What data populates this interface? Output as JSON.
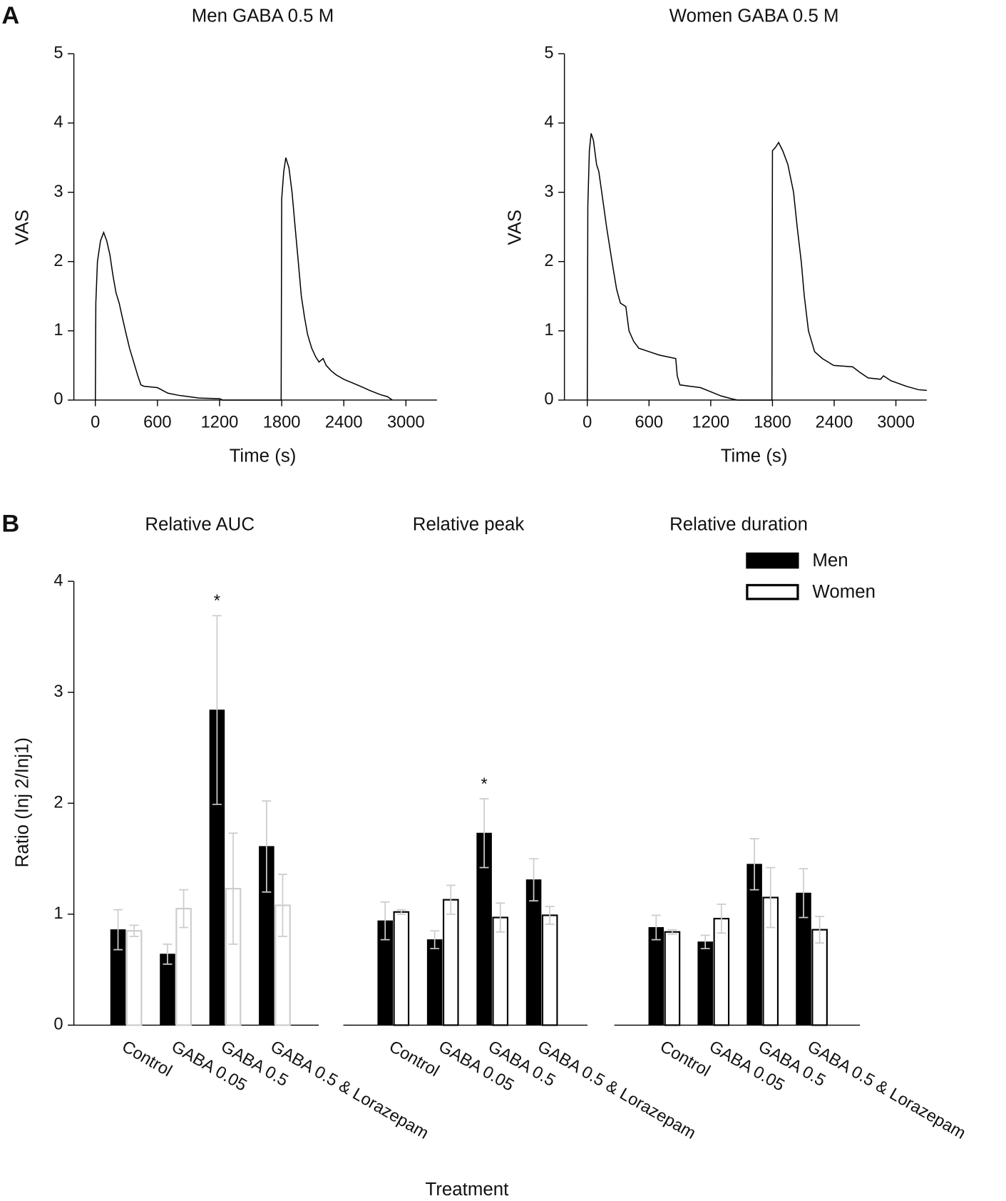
{
  "chart_data": [
    {
      "type": "line",
      "panel": "A",
      "title": "Men GABA 0.5 M",
      "xlabel": "Time (s)",
      "ylabel": "VAS",
      "x": [
        0,
        5,
        20,
        50,
        80,
        110,
        140,
        170,
        200,
        230,
        260,
        290,
        330,
        370,
        410,
        440,
        470,
        600,
        700,
        800,
        900,
        1000,
        1200,
        1230,
        1795,
        1800,
        1820,
        1840,
        1870,
        1900,
        1930,
        1960,
        1990,
        2020,
        2050,
        2090,
        2130,
        2160,
        2200,
        2230,
        2280,
        2330,
        2400,
        2480,
        2560,
        2650,
        2750,
        2820,
        2870
      ],
      "values": [
        0,
        1.4,
        2.0,
        2.3,
        2.42,
        2.3,
        2.1,
        1.8,
        1.55,
        1.4,
        1.2,
        1.0,
        0.75,
        0.55,
        0.35,
        0.22,
        0.2,
        0.18,
        0.1,
        0.07,
        0.05,
        0.03,
        0.02,
        0,
        0,
        2.9,
        3.3,
        3.5,
        3.35,
        3.0,
        2.5,
        2.0,
        1.5,
        1.2,
        0.95,
        0.75,
        0.62,
        0.55,
        0.6,
        0.5,
        0.42,
        0.36,
        0.3,
        0.25,
        0.2,
        0.14,
        0.08,
        0.05,
        0
      ],
      "color": "#000000",
      "xlim": [
        -200,
        3300
      ],
      "ylim": [
        0,
        5
      ],
      "xticks": [
        0,
        600,
        1200,
        1800,
        2400,
        3000
      ],
      "yticks": [
        0,
        1,
        2,
        3,
        4,
        5
      ]
    },
    {
      "type": "line",
      "title": "Women GABA 0.5 M",
      "xlabel": "Time (s)",
      "ylabel": "VAS",
      "x": [
        0,
        5,
        20,
        37,
        60,
        90,
        112,
        150,
        187,
        240,
        285,
        322,
        375,
        405,
        450,
        500,
        600,
        700,
        860,
        875,
        900,
        1000,
        1100,
        1200,
        1300,
        1400,
        1460,
        1795,
        1800,
        1830,
        1860,
        1900,
        1950,
        2005,
        2040,
        2080,
        2110,
        2150,
        2210,
        2285,
        2395,
        2580,
        2650,
        2730,
        2850,
        2880,
        2950,
        3100,
        3220,
        3300
      ],
      "values": [
        0,
        2.8,
        3.6,
        3.85,
        3.75,
        3.4,
        3.3,
        2.9,
        2.5,
        2.0,
        1.6,
        1.4,
        1.35,
        1.0,
        0.85,
        0.75,
        0.7,
        0.65,
        0.6,
        0.35,
        0.22,
        0.2,
        0.18,
        0.12,
        0.06,
        0.02,
        0,
        0,
        3.6,
        3.65,
        3.72,
        3.6,
        3.4,
        3.0,
        2.5,
        2.0,
        1.5,
        1.0,
        0.7,
        0.6,
        0.5,
        0.48,
        0.4,
        0.32,
        0.3,
        0.35,
        0.28,
        0.2,
        0.15,
        0.14
      ],
      "color": "#000000",
      "xlim": [
        -200,
        3300
      ],
      "ylim": [
        0,
        5
      ],
      "xticks": [
        0,
        600,
        1200,
        1800,
        2400,
        3000
      ],
      "yticks": [
        0,
        1,
        2,
        3,
        4,
        5
      ]
    },
    {
      "type": "bar",
      "panel": "B",
      "title": "Relative AUC",
      "ylabel": "Ratio (Inj 2/Inj1)",
      "categories": [
        "Control",
        "GABA 0.05",
        "GABA 0.5",
        "GABA 0.5 & Lorazepam"
      ],
      "series": [
        {
          "name": "Men",
          "color": "#000000",
          "values": [
            0.86,
            0.64,
            2.84,
            1.61
          ],
          "errors": [
            0.18,
            0.09,
            0.85,
            0.41
          ]
        },
        {
          "name": "Women",
          "color": "#cccccc",
          "hollow": true,
          "values": [
            0.85,
            1.05,
            1.23,
            1.08
          ],
          "errors": [
            0.05,
            0.17,
            0.5,
            0.28
          ]
        }
      ],
      "error_color": "#cccccc",
      "ylim": [
        0,
        4
      ],
      "yticks": [
        0,
        1,
        2,
        3,
        4
      ],
      "annotations": [
        {
          "text": "*",
          "category": "GABA 0.5",
          "series": "Men"
        }
      ]
    },
    {
      "type": "bar",
      "title": "Relative peak",
      "xlabel": "Treatment",
      "categories": [
        "Control",
        "GABA 0.05",
        "GABA 0.5",
        "GABA 0.5 & Lorazepam"
      ],
      "series": [
        {
          "name": "Men",
          "color": "#000000",
          "values": [
            0.94,
            0.77,
            1.73,
            1.31
          ],
          "errors": [
            0.17,
            0.08,
            0.31,
            0.19
          ]
        },
        {
          "name": "Women",
          "color": "#000000",
          "hollow": true,
          "values": [
            1.02,
            1.13,
            0.97,
            0.99
          ],
          "errors": [
            0.02,
            0.13,
            0.13,
            0.08
          ]
        }
      ],
      "error_color": "#cccccc",
      "ylim": [
        0,
        4
      ],
      "annotations": [
        {
          "text": "*",
          "category": "GABA 0.5",
          "series": "Men"
        }
      ]
    },
    {
      "type": "bar",
      "title": "Relative duration",
      "legend": "upper right",
      "categories": [
        "Control",
        "GABA 0.05",
        "GABA 0.5",
        "GABA 0.5 & Lorazepam"
      ],
      "series": [
        {
          "name": "Men",
          "color": "#000000",
          "values": [
            0.88,
            0.75,
            1.45,
            1.19
          ],
          "errors": [
            0.11,
            0.06,
            0.23,
            0.22
          ]
        },
        {
          "name": "Women",
          "color": "#000000",
          "hollow": true,
          "values": [
            0.84,
            0.96,
            1.15,
            0.86
          ],
          "errors": [
            0.02,
            0.13,
            0.27,
            0.12
          ]
        }
      ],
      "error_color": "#cccccc",
      "ylim": [
        0,
        4
      ]
    }
  ]
}
